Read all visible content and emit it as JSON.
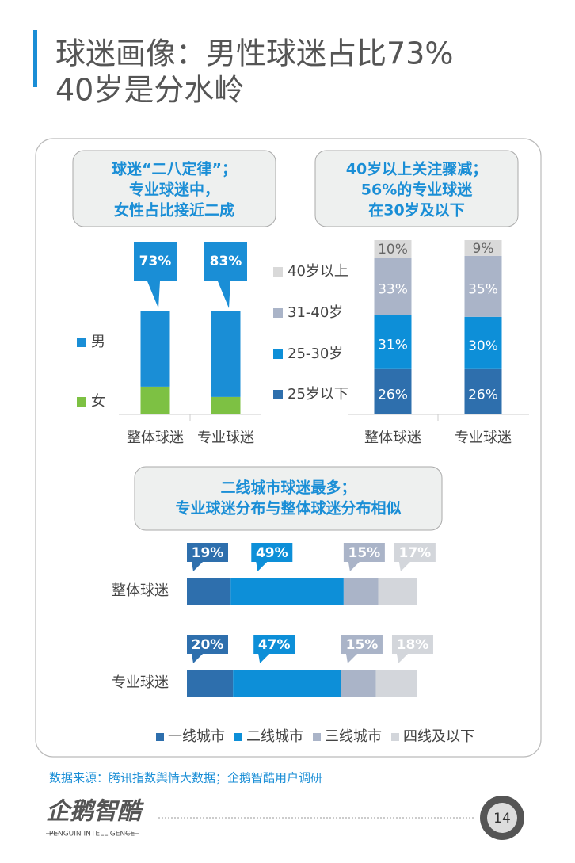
{
  "title": [
    "球迷画像：男性球迷占比73%",
    "40岁是分水岭"
  ],
  "chart_data": [
    {
      "type": "bar",
      "note": [
        "球迷“二八定律”；",
        "专业球迷中，",
        "女性占比接近二成"
      ],
      "categories": [
        "整体球迷",
        "专业球迷"
      ],
      "series": [
        {
          "name": "男",
          "color": "#1a8ed6",
          "values": [
            73,
            83
          ],
          "value_labels": [
            "73%",
            "83%"
          ]
        },
        {
          "name": "女",
          "color": "#7dc143",
          "values": [
            27,
            17
          ]
        }
      ]
    },
    {
      "type": "bar",
      "note": [
        "40岁以上关注骤减；",
        "56%的专业球迷",
        "在30岁及以下"
      ],
      "categories": [
        "整体球迷",
        "专业球迷"
      ],
      "series": [
        {
          "name": "40岁以上",
          "color": "#d9d9d9",
          "values": [
            10,
            9
          ],
          "value_labels": [
            "10%",
            "9%"
          ]
        },
        {
          "name": "31-40岁",
          "color": "#aab4c8",
          "values": [
            33,
            35
          ],
          "value_labels": [
            "33%",
            "35%"
          ]
        },
        {
          "name": "25-30岁",
          "color": "#0d8fd8",
          "values": [
            31,
            30
          ],
          "value_labels": [
            "31%",
            "30%"
          ]
        },
        {
          "name": "25岁以下",
          "color": "#2e6fad",
          "values": [
            26,
            26
          ],
          "value_labels": [
            "26%",
            "26%"
          ]
        }
      ]
    },
    {
      "type": "hbar",
      "note": [
        "二线城市球迷最多；",
        "专业球迷分布与整体球迷分布相似"
      ],
      "categories": [
        "整体球迷",
        "专业球迷"
      ],
      "series": [
        {
          "name": "一线城市",
          "color": "#2e6fad",
          "values": [
            19,
            20
          ],
          "value_labels": [
            "19%",
            "20%"
          ]
        },
        {
          "name": "二线城市",
          "color": "#0d8fd8",
          "values": [
            49,
            47
          ],
          "value_labels": [
            "49%",
            "47%"
          ]
        },
        {
          "name": "三线城市",
          "color": "#aab4c8",
          "values": [
            15,
            15
          ],
          "value_labels": [
            "15%",
            "15%"
          ]
        },
        {
          "name": "四线及以下",
          "color": "#d3d6db",
          "values": [
            17,
            18
          ],
          "value_labels": [
            "17%",
            "18%"
          ]
        }
      ]
    }
  ],
  "source": "数据来源：腾讯指数舆情大数据；企鹅智酷用户调研",
  "logo": {
    "name": "企鹅智酷",
    "sub": "PENGUIN INTELLIGENCE"
  },
  "page_number": "14"
}
